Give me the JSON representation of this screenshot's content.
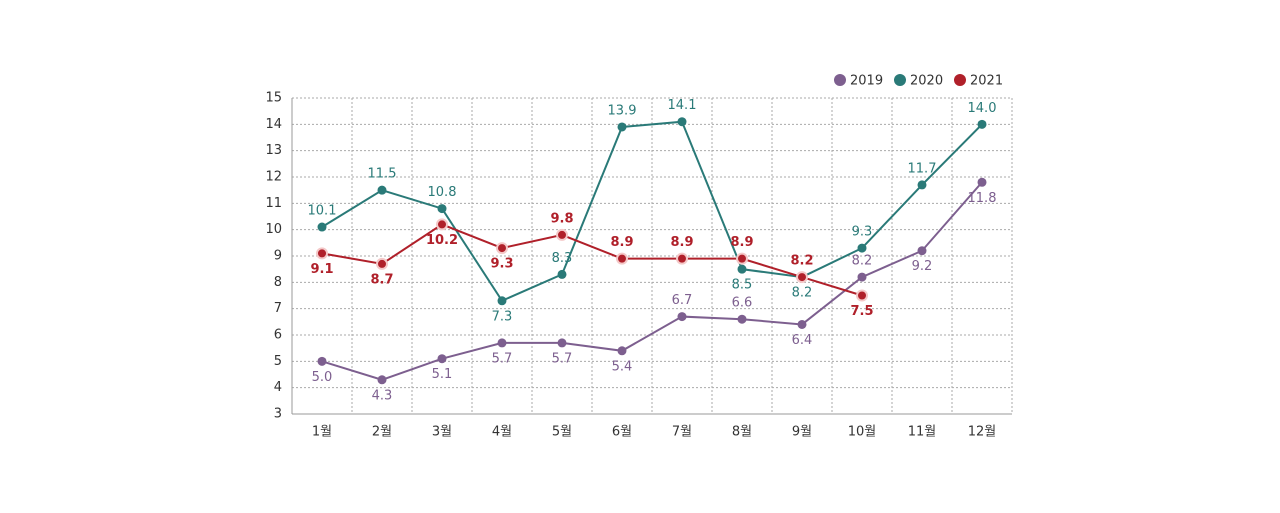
{
  "chart_data": {
    "type": "line",
    "categories": [
      "1월",
      "2월",
      "3월",
      "4월",
      "5월",
      "6월",
      "7월",
      "8월",
      "9월",
      "10월",
      "11월",
      "12월"
    ],
    "series": [
      {
        "name": "2019",
        "color": "#7d5f8f",
        "values": [
          5.0,
          4.3,
          5.1,
          5.7,
          5.7,
          5.4,
          6.7,
          6.6,
          6.4,
          8.2,
          9.2,
          11.8
        ],
        "value_labels": [
          "5.0",
          "4.3",
          "5.1",
          "5.7",
          "5.7",
          "5.4",
          "6.7",
          "6.6",
          "6.4",
          "8.2",
          "9.2",
          "11.8"
        ]
      },
      {
        "name": "2020",
        "color": "#2a7a78",
        "values": [
          10.1,
          11.5,
          10.8,
          7.3,
          8.3,
          13.9,
          14.1,
          8.5,
          8.2,
          9.3,
          11.7,
          14.0
        ],
        "value_labels": [
          "10.1",
          "11.5",
          "10.8",
          "7.3",
          "8.3",
          "13.9",
          "14.1",
          "8.5",
          "8.2",
          "9.3",
          "11.7",
          "14.0"
        ]
      },
      {
        "name": "2021",
        "color": "#b0202a",
        "values": [
          9.1,
          8.7,
          10.2,
          9.3,
          9.8,
          8.9,
          8.9,
          8.9,
          8.2,
          7.5,
          null,
          null
        ],
        "value_labels": [
          "9.1",
          "8.7",
          "10.2",
          "9.3",
          "9.8",
          "8.9",
          "8.9",
          "8.9",
          "8.2",
          "7.5",
          null,
          null
        ]
      }
    ],
    "ylim": [
      3,
      15
    ],
    "yticks": [
      3,
      4,
      5,
      6,
      7,
      8,
      9,
      10,
      11,
      12,
      13,
      14,
      15
    ],
    "grid": true,
    "legend": "top-right"
  }
}
